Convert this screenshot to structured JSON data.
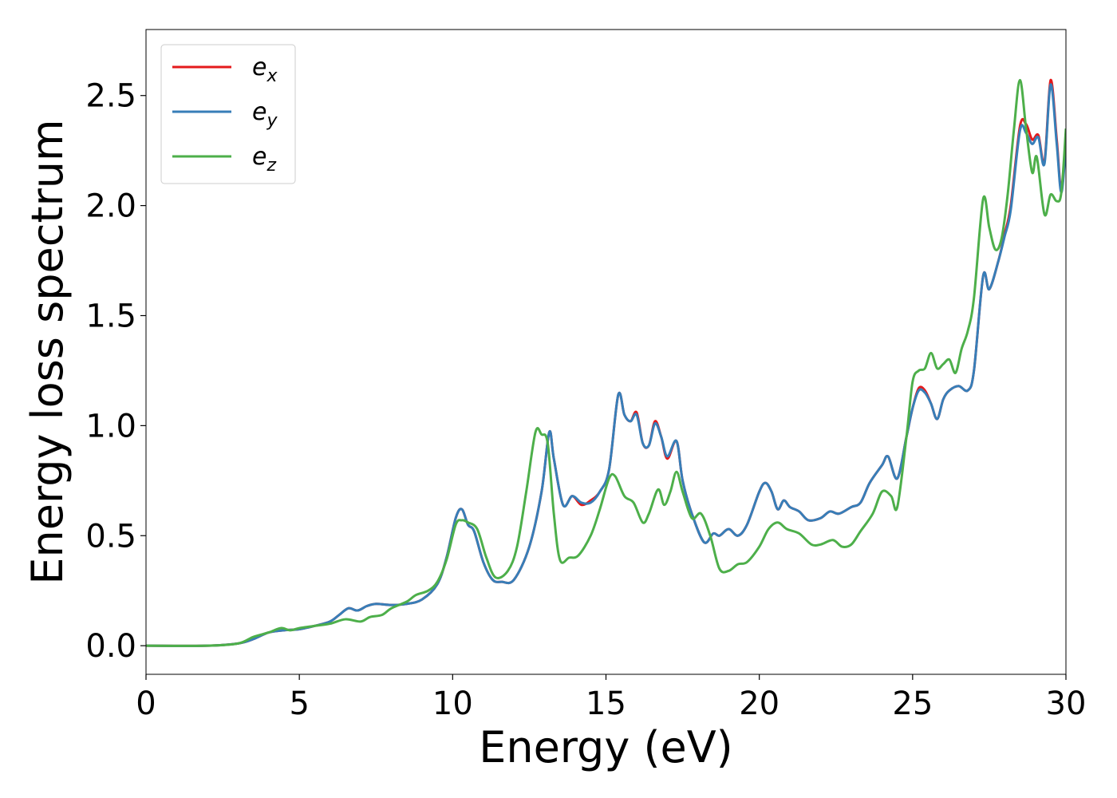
{
  "chart_data": {
    "type": "line",
    "xlabel": "Energy (eV)",
    "ylabel": "Energy loss spectrum",
    "xlim": [
      0,
      30
    ],
    "ylim": [
      -0.13,
      2.8
    ],
    "xticks": [
      0,
      5,
      10,
      15,
      20,
      25,
      30
    ],
    "xtick_labels": [
      "0",
      "5",
      "10",
      "15",
      "20",
      "25",
      "30"
    ],
    "yticks": [
      0.0,
      0.5,
      1.0,
      1.5,
      2.0,
      2.5
    ],
    "ytick_labels": [
      "0.0",
      "0.5",
      "1.0",
      "1.5",
      "2.0",
      "2.5"
    ],
    "grid": false,
    "legend_position": "upper-left",
    "series": [
      {
        "name": "e_x",
        "legend_base": "e",
        "legend_sub": "x",
        "color": "#e41a1c",
        "points": [
          [
            0,
            0
          ],
          [
            2,
            0
          ],
          [
            3,
            0.01
          ],
          [
            3.5,
            0.03
          ],
          [
            4,
            0.06
          ],
          [
            4.5,
            0.07
          ],
          [
            5,
            0.075
          ],
          [
            5.5,
            0.09
          ],
          [
            6,
            0.11
          ],
          [
            6.3,
            0.14
          ],
          [
            6.6,
            0.17
          ],
          [
            6.9,
            0.16
          ],
          [
            7.2,
            0.18
          ],
          [
            7.5,
            0.19
          ],
          [
            8,
            0.185
          ],
          [
            8.5,
            0.19
          ],
          [
            9,
            0.21
          ],
          [
            9.5,
            0.28
          ],
          [
            9.8,
            0.4
          ],
          [
            10.1,
            0.58
          ],
          [
            10.3,
            0.62
          ],
          [
            10.5,
            0.55
          ],
          [
            10.7,
            0.52
          ],
          [
            11,
            0.38
          ],
          [
            11.3,
            0.3
          ],
          [
            11.6,
            0.29
          ],
          [
            12,
            0.3
          ],
          [
            12.5,
            0.45
          ],
          [
            12.9,
            0.7
          ],
          [
            13.15,
            0.97
          ],
          [
            13.3,
            0.85
          ],
          [
            13.6,
            0.64
          ],
          [
            13.9,
            0.68
          ],
          [
            14.2,
            0.64
          ],
          [
            14.5,
            0.66
          ],
          [
            14.8,
            0.7
          ],
          [
            15.1,
            0.8
          ],
          [
            15.4,
            1.14
          ],
          [
            15.6,
            1.05
          ],
          [
            15.8,
            1.02
          ],
          [
            16,
            1.06
          ],
          [
            16.2,
            0.92
          ],
          [
            16.4,
            0.91
          ],
          [
            16.6,
            1.02
          ],
          [
            16.8,
            0.95
          ],
          [
            17,
            0.85
          ],
          [
            17.3,
            0.93
          ],
          [
            17.5,
            0.75
          ],
          [
            17.8,
            0.6
          ],
          [
            18.2,
            0.47
          ],
          [
            18.5,
            0.51
          ],
          [
            18.7,
            0.5
          ],
          [
            19,
            0.53
          ],
          [
            19.3,
            0.5
          ],
          [
            19.6,
            0.55
          ],
          [
            20,
            0.7
          ],
          [
            20.2,
            0.74
          ],
          [
            20.4,
            0.7
          ],
          [
            20.6,
            0.62
          ],
          [
            20.8,
            0.66
          ],
          [
            21,
            0.63
          ],
          [
            21.3,
            0.61
          ],
          [
            21.6,
            0.57
          ],
          [
            22,
            0.58
          ],
          [
            22.3,
            0.61
          ],
          [
            22.6,
            0.6
          ],
          [
            23,
            0.63
          ],
          [
            23.3,
            0.65
          ],
          [
            23.6,
            0.74
          ],
          [
            24,
            0.82
          ],
          [
            24.2,
            0.86
          ],
          [
            24.5,
            0.76
          ],
          [
            24.8,
            0.95
          ],
          [
            25,
            1.08
          ],
          [
            25.2,
            1.17
          ],
          [
            25.4,
            1.16
          ],
          [
            25.6,
            1.1
          ],
          [
            25.8,
            1.03
          ],
          [
            26,
            1.12
          ],
          [
            26.2,
            1.16
          ],
          [
            26.5,
            1.18
          ],
          [
            26.8,
            1.16
          ],
          [
            27,
            1.25
          ],
          [
            27.3,
            1.68
          ],
          [
            27.5,
            1.62
          ],
          [
            27.8,
            1.75
          ],
          [
            28,
            1.87
          ],
          [
            28.2,
            2.0
          ],
          [
            28.5,
            2.36
          ],
          [
            28.7,
            2.37
          ],
          [
            28.9,
            2.3
          ],
          [
            29.1,
            2.32
          ],
          [
            29.3,
            2.2
          ],
          [
            29.5,
            2.57
          ],
          [
            29.7,
            2.3
          ],
          [
            29.85,
            2.07
          ],
          [
            30,
            2.3
          ]
        ]
      },
      {
        "name": "e_y",
        "legend_base": "e",
        "legend_sub": "y",
        "color": "#377eb8",
        "points": [
          [
            0,
            0
          ],
          [
            2,
            0
          ],
          [
            3,
            0.01
          ],
          [
            3.5,
            0.03
          ],
          [
            4,
            0.06
          ],
          [
            4.5,
            0.07
          ],
          [
            5,
            0.075
          ],
          [
            5.5,
            0.09
          ],
          [
            6,
            0.11
          ],
          [
            6.3,
            0.14
          ],
          [
            6.6,
            0.17
          ],
          [
            6.9,
            0.16
          ],
          [
            7.2,
            0.18
          ],
          [
            7.5,
            0.19
          ],
          [
            8,
            0.185
          ],
          [
            8.5,
            0.19
          ],
          [
            9,
            0.21
          ],
          [
            9.5,
            0.28
          ],
          [
            9.8,
            0.4
          ],
          [
            10.1,
            0.58
          ],
          [
            10.3,
            0.62
          ],
          [
            10.5,
            0.55
          ],
          [
            10.7,
            0.52
          ],
          [
            11,
            0.38
          ],
          [
            11.3,
            0.3
          ],
          [
            11.6,
            0.29
          ],
          [
            12,
            0.3
          ],
          [
            12.5,
            0.45
          ],
          [
            12.9,
            0.7
          ],
          [
            13.15,
            0.97
          ],
          [
            13.3,
            0.85
          ],
          [
            13.6,
            0.64
          ],
          [
            13.9,
            0.68
          ],
          [
            14.2,
            0.65
          ],
          [
            14.5,
            0.65
          ],
          [
            14.8,
            0.7
          ],
          [
            15.1,
            0.8
          ],
          [
            15.4,
            1.14
          ],
          [
            15.6,
            1.05
          ],
          [
            15.8,
            1.02
          ],
          [
            16,
            1.05
          ],
          [
            16.2,
            0.92
          ],
          [
            16.4,
            0.91
          ],
          [
            16.6,
            1.01
          ],
          [
            16.8,
            0.95
          ],
          [
            17,
            0.86
          ],
          [
            17.3,
            0.93
          ],
          [
            17.5,
            0.75
          ],
          [
            17.8,
            0.6
          ],
          [
            18.2,
            0.47
          ],
          [
            18.5,
            0.51
          ],
          [
            18.7,
            0.5
          ],
          [
            19,
            0.53
          ],
          [
            19.3,
            0.5
          ],
          [
            19.6,
            0.55
          ],
          [
            20,
            0.7
          ],
          [
            20.2,
            0.74
          ],
          [
            20.4,
            0.7
          ],
          [
            20.6,
            0.62
          ],
          [
            20.8,
            0.66
          ],
          [
            21,
            0.63
          ],
          [
            21.3,
            0.61
          ],
          [
            21.6,
            0.57
          ],
          [
            22,
            0.58
          ],
          [
            22.3,
            0.61
          ],
          [
            22.6,
            0.6
          ],
          [
            23,
            0.63
          ],
          [
            23.3,
            0.65
          ],
          [
            23.6,
            0.74
          ],
          [
            24,
            0.82
          ],
          [
            24.2,
            0.86
          ],
          [
            24.5,
            0.76
          ],
          [
            24.8,
            0.95
          ],
          [
            25,
            1.08
          ],
          [
            25.2,
            1.16
          ],
          [
            25.4,
            1.15
          ],
          [
            25.6,
            1.1
          ],
          [
            25.8,
            1.03
          ],
          [
            26,
            1.12
          ],
          [
            26.2,
            1.16
          ],
          [
            26.5,
            1.18
          ],
          [
            26.8,
            1.16
          ],
          [
            27,
            1.25
          ],
          [
            27.3,
            1.68
          ],
          [
            27.5,
            1.62
          ],
          [
            27.8,
            1.75
          ],
          [
            28,
            1.86
          ],
          [
            28.2,
            1.98
          ],
          [
            28.5,
            2.34
          ],
          [
            28.7,
            2.33
          ],
          [
            28.9,
            2.28
          ],
          [
            29.1,
            2.31
          ],
          [
            29.3,
            2.19
          ],
          [
            29.5,
            2.55
          ],
          [
            29.7,
            2.28
          ],
          [
            29.85,
            2.06
          ],
          [
            30,
            2.28
          ]
        ]
      },
      {
        "name": "e_z",
        "legend_base": "e",
        "legend_sub": "z",
        "color": "#4daf4a",
        "points": [
          [
            0,
            0
          ],
          [
            2,
            0
          ],
          [
            3,
            0.01
          ],
          [
            3.5,
            0.04
          ],
          [
            4,
            0.06
          ],
          [
            4.4,
            0.08
          ],
          [
            4.7,
            0.07
          ],
          [
            5,
            0.08
          ],
          [
            5.5,
            0.09
          ],
          [
            6,
            0.1
          ],
          [
            6.5,
            0.12
          ],
          [
            7,
            0.11
          ],
          [
            7.3,
            0.13
          ],
          [
            7.7,
            0.14
          ],
          [
            8,
            0.17
          ],
          [
            8.5,
            0.2
          ],
          [
            8.8,
            0.23
          ],
          [
            9.2,
            0.25
          ],
          [
            9.5,
            0.29
          ],
          [
            9.8,
            0.39
          ],
          [
            10.1,
            0.55
          ],
          [
            10.3,
            0.57
          ],
          [
            10.5,
            0.56
          ],
          [
            10.8,
            0.53
          ],
          [
            11.1,
            0.4
          ],
          [
            11.4,
            0.31
          ],
          [
            11.8,
            0.34
          ],
          [
            12.1,
            0.45
          ],
          [
            12.4,
            0.7
          ],
          [
            12.7,
            0.97
          ],
          [
            12.9,
            0.96
          ],
          [
            13.1,
            0.92
          ],
          [
            13.3,
            0.6
          ],
          [
            13.5,
            0.39
          ],
          [
            13.8,
            0.4
          ],
          [
            14.1,
            0.41
          ],
          [
            14.5,
            0.5
          ],
          [
            14.8,
            0.62
          ],
          [
            15.1,
            0.76
          ],
          [
            15.3,
            0.77
          ],
          [
            15.6,
            0.68
          ],
          [
            15.9,
            0.65
          ],
          [
            16.2,
            0.56
          ],
          [
            16.4,
            0.6
          ],
          [
            16.7,
            0.71
          ],
          [
            16.9,
            0.64
          ],
          [
            17.1,
            0.7
          ],
          [
            17.3,
            0.79
          ],
          [
            17.5,
            0.7
          ],
          [
            17.8,
            0.58
          ],
          [
            18.1,
            0.6
          ],
          [
            18.4,
            0.5
          ],
          [
            18.7,
            0.35
          ],
          [
            19,
            0.34
          ],
          [
            19.3,
            0.37
          ],
          [
            19.6,
            0.38
          ],
          [
            20,
            0.45
          ],
          [
            20.3,
            0.53
          ],
          [
            20.6,
            0.56
          ],
          [
            20.9,
            0.53
          ],
          [
            21.3,
            0.51
          ],
          [
            21.7,
            0.46
          ],
          [
            22,
            0.46
          ],
          [
            22.4,
            0.48
          ],
          [
            22.7,
            0.45
          ],
          [
            23,
            0.46
          ],
          [
            23.3,
            0.52
          ],
          [
            23.7,
            0.6
          ],
          [
            24,
            0.7
          ],
          [
            24.3,
            0.68
          ],
          [
            24.5,
            0.63
          ],
          [
            24.8,
            0.95
          ],
          [
            25,
            1.2
          ],
          [
            25.2,
            1.25
          ],
          [
            25.4,
            1.26
          ],
          [
            25.6,
            1.33
          ],
          [
            25.8,
            1.26
          ],
          [
            26,
            1.28
          ],
          [
            26.2,
            1.3
          ],
          [
            26.4,
            1.24
          ],
          [
            26.6,
            1.35
          ],
          [
            26.8,
            1.43
          ],
          [
            27,
            1.58
          ],
          [
            27.3,
            2.03
          ],
          [
            27.5,
            1.9
          ],
          [
            27.7,
            1.8
          ],
          [
            27.9,
            1.85
          ],
          [
            28.1,
            2.05
          ],
          [
            28.3,
            2.34
          ],
          [
            28.5,
            2.57
          ],
          [
            28.7,
            2.35
          ],
          [
            28.9,
            2.15
          ],
          [
            29.05,
            2.22
          ],
          [
            29.3,
            1.96
          ],
          [
            29.5,
            2.05
          ],
          [
            29.7,
            2.02
          ],
          [
            29.85,
            2.06
          ],
          [
            30,
            2.35
          ]
        ]
      }
    ]
  }
}
